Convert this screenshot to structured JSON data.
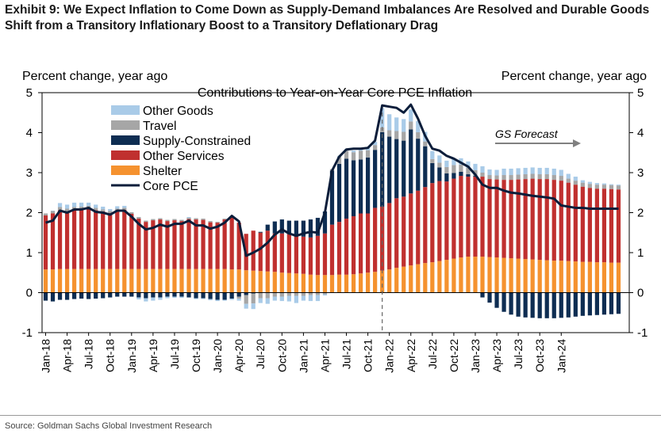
{
  "exhibit": {
    "title": "Exhibit 9: We Expect Inflation to Come Down as Supply-Demand Imbalances Are Resolved and Durable Goods Shift from a Transitory Inflationary Boost to a Transitory Deflationary Drag",
    "source": "Source: Goldman Sachs Global Investment Research"
  },
  "chart_data": {
    "type": "bar",
    "title": "Contributions to Year-on-Year Core PCE Inflation",
    "ylabel_left": "Percent change, year ago",
    "ylabel_right": "Percent change, year ago",
    "ylim": [
      -1,
      5
    ],
    "yticks": [
      -1,
      0,
      1,
      2,
      3,
      4,
      5
    ],
    "x_tick_labels": [
      "Jan-18",
      "Apr-18",
      "Jul-18",
      "Oct-18",
      "Jan-19",
      "Apr-19",
      "Jul-19",
      "Oct-19",
      "Jan-20",
      "Apr-20",
      "Jul-20",
      "Oct-20",
      "Jan-21",
      "Apr-21",
      "Jul-21",
      "Oct-21",
      "Jan-22",
      "Apr-22",
      "Jul-22",
      "Oct-22",
      "Jan-23",
      "Apr-23",
      "Jul-23",
      "Oct-23",
      "Jan-24"
    ],
    "annotation": "GS Forecast",
    "legend_position": "top-left",
    "colors": {
      "other_goods": "#a9cbe8",
      "travel": "#a6a6a6",
      "supply_constrained": "#0e2d52",
      "other_services": "#c0302f",
      "shelter": "#f5922f",
      "core_pce": "#0b1d3a"
    },
    "series": [
      {
        "name": "Other Goods",
        "key": "other_goods"
      },
      {
        "name": "Travel",
        "key": "travel"
      },
      {
        "name": "Supply-Constrained",
        "key": "supply_constrained"
      },
      {
        "name": "Other Services",
        "key": "other_services"
      },
      {
        "name": "Shelter",
        "key": "shelter"
      },
      {
        "name": "Core PCE",
        "key": "core_pce"
      }
    ],
    "months": [
      {
        "x": "Jan-18",
        "shelter": 0.58,
        "other_services": 1.35,
        "supply_constrained": -0.2,
        "travel": 0.05,
        "other_goods": 0.0,
        "core_pce": 1.75
      },
      {
        "x": "Feb-18",
        "shelter": 0.58,
        "other_services": 1.4,
        "supply_constrained": -0.22,
        "travel": 0.06,
        "other_goods": 0.01,
        "core_pce": 1.8
      },
      {
        "x": "Mar-18",
        "shelter": 0.59,
        "other_services": 1.47,
        "supply_constrained": -0.18,
        "travel": 0.08,
        "other_goods": 0.1,
        "core_pce": 2.05
      },
      {
        "x": "Apr-18",
        "shelter": 0.59,
        "other_services": 1.44,
        "supply_constrained": -0.18,
        "travel": 0.07,
        "other_goods": 0.1,
        "core_pce": 2.0
      },
      {
        "x": "May-18",
        "shelter": 0.59,
        "other_services": 1.48,
        "supply_constrained": -0.16,
        "travel": 0.07,
        "other_goods": 0.11,
        "core_pce": 2.08
      },
      {
        "x": "Jun-18",
        "shelter": 0.59,
        "other_services": 1.5,
        "supply_constrained": -0.15,
        "travel": 0.06,
        "other_goods": 0.1,
        "core_pce": 2.08
      },
      {
        "x": "Jul-18",
        "shelter": 0.59,
        "other_services": 1.52,
        "supply_constrained": -0.16,
        "travel": 0.06,
        "other_goods": 0.08,
        "core_pce": 2.12
      },
      {
        "x": "Aug-18",
        "shelter": 0.59,
        "other_services": 1.47,
        "supply_constrained": -0.15,
        "travel": 0.06,
        "other_goods": 0.08,
        "core_pce": 2.02
      },
      {
        "x": "Sep-18",
        "shelter": 0.59,
        "other_services": 1.44,
        "supply_constrained": -0.14,
        "travel": 0.05,
        "other_goods": 0.07,
        "core_pce": 2.0
      },
      {
        "x": "Oct-18",
        "shelter": 0.59,
        "other_services": 1.4,
        "supply_constrained": -0.12,
        "travel": 0.05,
        "other_goods": 0.05,
        "core_pce": 1.95
      },
      {
        "x": "Nov-18",
        "shelter": 0.59,
        "other_services": 1.46,
        "supply_constrained": -0.1,
        "travel": 0.05,
        "other_goods": 0.06,
        "core_pce": 2.05
      },
      {
        "x": "Dec-18",
        "shelter": 0.59,
        "other_services": 1.48,
        "supply_constrained": -0.1,
        "travel": 0.05,
        "other_goods": 0.05,
        "core_pce": 2.05
      },
      {
        "x": "Jan-19",
        "shelter": 0.59,
        "other_services": 1.38,
        "supply_constrained": -0.1,
        "travel": 0.04,
        "other_goods": 0.0,
        "core_pce": 1.9
      },
      {
        "x": "Feb-19",
        "shelter": 0.59,
        "other_services": 1.26,
        "supply_constrained": -0.12,
        "travel": 0.04,
        "other_goods": -0.05,
        "core_pce": 1.72
      },
      {
        "x": "Mar-19",
        "shelter": 0.59,
        "other_services": 1.18,
        "supply_constrained": -0.14,
        "travel": 0.03,
        "other_goods": -0.08,
        "core_pce": 1.58
      },
      {
        "x": "Apr-19",
        "shelter": 0.59,
        "other_services": 1.22,
        "supply_constrained": -0.12,
        "travel": 0.03,
        "other_goods": -0.08,
        "core_pce": 1.62
      },
      {
        "x": "May-19",
        "shelter": 0.59,
        "other_services": 1.24,
        "supply_constrained": -0.12,
        "travel": 0.03,
        "other_goods": -0.06,
        "core_pce": 1.7
      },
      {
        "x": "Jun-19",
        "shelter": 0.59,
        "other_services": 1.2,
        "supply_constrained": -0.1,
        "travel": 0.03,
        "other_goods": -0.04,
        "core_pce": 1.65
      },
      {
        "x": "Jul-19",
        "shelter": 0.59,
        "other_services": 1.22,
        "supply_constrained": -0.1,
        "travel": 0.03,
        "other_goods": -0.03,
        "core_pce": 1.72
      },
      {
        "x": "Aug-19",
        "shelter": 0.59,
        "other_services": 1.2,
        "supply_constrained": -0.1,
        "travel": 0.03,
        "other_goods": -0.03,
        "core_pce": 1.72
      },
      {
        "x": "Sep-19",
        "shelter": 0.59,
        "other_services": 1.25,
        "supply_constrained": -0.12,
        "travel": 0.03,
        "other_goods": 0.02,
        "core_pce": 1.8
      },
      {
        "x": "Oct-19",
        "shelter": 0.59,
        "other_services": 1.24,
        "supply_constrained": -0.14,
        "travel": 0.03,
        "other_goods": -0.02,
        "core_pce": 1.68
      },
      {
        "x": "Nov-19",
        "shelter": 0.59,
        "other_services": 1.23,
        "supply_constrained": -0.14,
        "travel": 0.03,
        "other_goods": -0.02,
        "core_pce": 1.68
      },
      {
        "x": "Dec-19",
        "shelter": 0.59,
        "other_services": 1.17,
        "supply_constrained": -0.16,
        "travel": 0.03,
        "other_goods": -0.03,
        "core_pce": 1.6
      },
      {
        "x": "Jan-20",
        "shelter": 0.59,
        "other_services": 1.16,
        "supply_constrained": -0.18,
        "travel": 0.02,
        "other_goods": -0.03,
        "core_pce": 1.65
      },
      {
        "x": "Feb-20",
        "shelter": 0.59,
        "other_services": 1.24,
        "supply_constrained": -0.18,
        "travel": 0.02,
        "other_goods": -0.02,
        "core_pce": 1.75
      },
      {
        "x": "Mar-20",
        "shelter": 0.58,
        "other_services": 1.3,
        "supply_constrained": -0.15,
        "travel": 0.02,
        "other_goods": -0.03,
        "core_pce": 1.92
      },
      {
        "x": "Apr-20",
        "shelter": 0.58,
        "other_services": 1.17,
        "supply_constrained": -0.1,
        "travel": -0.05,
        "other_goods": -0.05,
        "core_pce": 1.78
      },
      {
        "x": "May-20",
        "shelter": 0.56,
        "other_services": 0.91,
        "supply_constrained": -0.06,
        "travel": -0.22,
        "other_goods": -0.12,
        "core_pce": 0.92
      },
      {
        "x": "Jun-20",
        "shelter": 0.55,
        "other_services": 1.0,
        "supply_constrained": -0.02,
        "travel": -0.25,
        "other_goods": -0.14,
        "core_pce": 1.0
      },
      {
        "x": "Jul-20",
        "shelter": 0.54,
        "other_services": 0.96,
        "supply_constrained": 0.02,
        "travel": -0.14,
        "other_goods": -0.12,
        "core_pce": 1.1
      },
      {
        "x": "Aug-20",
        "shelter": 0.53,
        "other_services": 1.02,
        "supply_constrained": 0.15,
        "travel": -0.14,
        "other_goods": -0.14,
        "core_pce": 1.25
      },
      {
        "x": "Sep-20",
        "shelter": 0.52,
        "other_services": 0.96,
        "supply_constrained": 0.3,
        "travel": -0.1,
        "other_goods": -0.1,
        "core_pce": 1.45
      },
      {
        "x": "Oct-20",
        "shelter": 0.5,
        "other_services": 0.98,
        "supply_constrained": 0.35,
        "travel": -0.1,
        "other_goods": -0.11,
        "core_pce": 1.58
      },
      {
        "x": "Nov-20",
        "shelter": 0.49,
        "other_services": 0.97,
        "supply_constrained": 0.34,
        "travel": -0.08,
        "other_goods": -0.14,
        "core_pce": 1.48
      },
      {
        "x": "Dec-20",
        "shelter": 0.48,
        "other_services": 0.95,
        "supply_constrained": 0.37,
        "travel": -0.08,
        "other_goods": -0.18,
        "core_pce": 1.42
      },
      {
        "x": "Jan-21",
        "shelter": 0.47,
        "other_services": 0.93,
        "supply_constrained": 0.4,
        "travel": -0.08,
        "other_goods": -0.12,
        "core_pce": 1.48
      },
      {
        "x": "Feb-21",
        "shelter": 0.45,
        "other_services": 0.93,
        "supply_constrained": 0.45,
        "travel": -0.06,
        "other_goods": -0.15,
        "core_pce": 1.52
      },
      {
        "x": "Mar-21",
        "shelter": 0.44,
        "other_services": 0.98,
        "supply_constrained": 0.45,
        "travel": -0.06,
        "other_goods": -0.15,
        "core_pce": 1.5
      },
      {
        "x": "Apr-21",
        "shelter": 0.44,
        "other_services": 1.04,
        "supply_constrained": 0.55,
        "travel": -0.04,
        "other_goods": -0.03,
        "core_pce": 2.0
      },
      {
        "x": "May-21",
        "shelter": 0.44,
        "other_services": 1.26,
        "supply_constrained": 1.35,
        "travel": 0.04,
        "other_goods": 0.0,
        "core_pce": 3.05
      },
      {
        "x": "Jun-21",
        "shelter": 0.45,
        "other_services": 1.32,
        "supply_constrained": 1.45,
        "travel": 0.18,
        "other_goods": 0.02,
        "core_pce": 3.4
      },
      {
        "x": "Jul-21",
        "shelter": 0.45,
        "other_services": 1.4,
        "supply_constrained": 1.5,
        "travel": 0.2,
        "other_goods": 0.04,
        "core_pce": 3.58
      },
      {
        "x": "Aug-21",
        "shelter": 0.46,
        "other_services": 1.45,
        "supply_constrained": 1.4,
        "travel": 0.2,
        "other_goods": 0.04,
        "core_pce": 3.6
      },
      {
        "x": "Sep-21",
        "shelter": 0.48,
        "other_services": 1.5,
        "supply_constrained": 1.35,
        "travel": 0.22,
        "other_goods": 0.05,
        "core_pce": 3.6
      },
      {
        "x": "Oct-21",
        "shelter": 0.5,
        "other_services": 1.48,
        "supply_constrained": 1.4,
        "travel": 0.18,
        "other_goods": 0.06,
        "core_pce": 3.62
      },
      {
        "x": "Nov-21",
        "shelter": 0.52,
        "other_services": 1.6,
        "supply_constrained": 1.45,
        "travel": 0.12,
        "other_goods": 0.08,
        "core_pce": 3.8
      },
      {
        "x": "Dec-21",
        "shelter": 0.55,
        "other_services": 1.6,
        "supply_constrained": 1.86,
        "travel": 0.12,
        "other_goods": 0.48,
        "core_pce": 4.68
      },
      {
        "x": "Jan-22",
        "shelter": 0.58,
        "other_services": 1.66,
        "supply_constrained": 1.66,
        "travel": 0.16,
        "other_goods": 0.4,
        "core_pce": 4.65
      },
      {
        "x": "Feb-22",
        "shelter": 0.62,
        "other_services": 1.74,
        "supply_constrained": 1.48,
        "travel": 0.2,
        "other_goods": 0.34,
        "core_pce": 4.62
      },
      {
        "x": "Mar-22",
        "shelter": 0.65,
        "other_services": 1.75,
        "supply_constrained": 1.4,
        "travel": 0.22,
        "other_goods": 0.32,
        "core_pce": 4.5
      },
      {
        "x": "Apr-22",
        "shelter": 0.68,
        "other_services": 1.8,
        "supply_constrained": 1.6,
        "travel": 0.2,
        "other_goods": 0.3,
        "core_pce": 4.7
      },
      {
        "x": "May-22",
        "shelter": 0.71,
        "other_services": 1.84,
        "supply_constrained": 1.3,
        "travel": 0.16,
        "other_goods": 0.28,
        "core_pce": 4.35
      },
      {
        "x": "Jun-22",
        "shelter": 0.74,
        "other_services": 1.9,
        "supply_constrained": 1.02,
        "travel": 0.12,
        "other_goods": 0.24,
        "core_pce": 3.92
      },
      {
        "x": "Jul-22",
        "shelter": 0.76,
        "other_services": 1.98,
        "supply_constrained": 0.5,
        "travel": 0.1,
        "other_goods": 0.2,
        "core_pce": 3.6
      },
      {
        "x": "Aug-22",
        "shelter": 0.79,
        "other_services": 2.0,
        "supply_constrained": 0.34,
        "travel": 0.12,
        "other_goods": 0.18,
        "core_pce": 3.55
      },
      {
        "x": "Sep-22",
        "shelter": 0.82,
        "other_services": 1.96,
        "supply_constrained": 0.2,
        "travel": 0.16,
        "other_goods": 0.16,
        "core_pce": 3.42
      },
      {
        "x": "Oct-22",
        "shelter": 0.85,
        "other_services": 2.0,
        "supply_constrained": 0.14,
        "travel": 0.2,
        "other_goods": 0.16,
        "core_pce": 3.35
      },
      {
        "x": "Nov-22",
        "shelter": 0.88,
        "other_services": 2.04,
        "supply_constrained": 0.1,
        "travel": 0.18,
        "other_goods": 0.16,
        "core_pce": 3.25
      },
      {
        "x": "Dec-22",
        "shelter": 0.9,
        "other_services": 2.0,
        "supply_constrained": 0.06,
        "travel": 0.16,
        "other_goods": 0.16,
        "core_pce": 3.15
      },
      {
        "x": "Jan-23",
        "shelter": 0.9,
        "other_services": 2.0,
        "supply_constrained": 0.02,
        "travel": 0.14,
        "other_goods": 0.16,
        "core_pce": 2.95
      },
      {
        "x": "Feb-23",
        "shelter": 0.9,
        "other_services": 2.0,
        "supply_constrained": -0.12,
        "travel": 0.1,
        "other_goods": 0.16,
        "core_pce": 2.7
      },
      {
        "x": "Mar-23",
        "shelter": 0.89,
        "other_services": 1.95,
        "supply_constrained": -0.25,
        "travel": 0.1,
        "other_goods": 0.14,
        "core_pce": 2.62
      },
      {
        "x": "Apr-23",
        "shelter": 0.88,
        "other_services": 1.95,
        "supply_constrained": -0.38,
        "travel": 0.1,
        "other_goods": 0.14,
        "core_pce": 2.62
      },
      {
        "x": "May-23",
        "shelter": 0.87,
        "other_services": 1.95,
        "supply_constrained": -0.48,
        "travel": 0.12,
        "other_goods": 0.16,
        "core_pce": 2.55
      },
      {
        "x": "Jun-23",
        "shelter": 0.86,
        "other_services": 1.96,
        "supply_constrained": -0.55,
        "travel": 0.12,
        "other_goods": 0.16,
        "core_pce": 2.5
      },
      {
        "x": "Jul-23",
        "shelter": 0.85,
        "other_services": 1.98,
        "supply_constrained": -0.6,
        "travel": 0.12,
        "other_goods": 0.16,
        "core_pce": 2.48
      },
      {
        "x": "Aug-23",
        "shelter": 0.84,
        "other_services": 2.0,
        "supply_constrained": -0.62,
        "travel": 0.12,
        "other_goods": 0.16,
        "core_pce": 2.45
      },
      {
        "x": "Sep-23",
        "shelter": 0.83,
        "other_services": 2.02,
        "supply_constrained": -0.63,
        "travel": 0.12,
        "other_goods": 0.16,
        "core_pce": 2.42
      },
      {
        "x": "Oct-23",
        "shelter": 0.82,
        "other_services": 2.02,
        "supply_constrained": -0.64,
        "travel": 0.12,
        "other_goods": 0.16,
        "core_pce": 2.4
      },
      {
        "x": "Nov-23",
        "shelter": 0.81,
        "other_services": 2.03,
        "supply_constrained": -0.64,
        "travel": 0.12,
        "other_goods": 0.16,
        "core_pce": 2.38
      },
      {
        "x": "Dec-23",
        "shelter": 0.8,
        "other_services": 2.02,
        "supply_constrained": -0.64,
        "travel": 0.12,
        "other_goods": 0.16,
        "core_pce": 2.35
      },
      {
        "x": "Jan-24",
        "shelter": 0.8,
        "other_services": 2.0,
        "supply_constrained": -0.63,
        "travel": 0.12,
        "other_goods": 0.15,
        "core_pce": 2.18
      },
      {
        "x": "Feb-24",
        "shelter": 0.79,
        "other_services": 1.96,
        "supply_constrained": -0.62,
        "travel": 0.1,
        "other_goods": 0.12,
        "core_pce": 2.15
      },
      {
        "x": "Mar-24",
        "shelter": 0.78,
        "other_services": 1.92,
        "supply_constrained": -0.6,
        "travel": 0.1,
        "other_goods": 0.1,
        "core_pce": 2.12
      },
      {
        "x": "Apr-24",
        "shelter": 0.77,
        "other_services": 1.88,
        "supply_constrained": -0.58,
        "travel": 0.1,
        "other_goods": 0.06,
        "core_pce": 2.12
      },
      {
        "x": "May-24",
        "shelter": 0.77,
        "other_services": 1.85,
        "supply_constrained": -0.57,
        "travel": 0.1,
        "other_goods": 0.05,
        "core_pce": 2.1
      },
      {
        "x": "Jun-24",
        "shelter": 0.76,
        "other_services": 1.84,
        "supply_constrained": -0.56,
        "travel": 0.1,
        "other_goods": 0.04,
        "core_pce": 2.1
      },
      {
        "x": "Jul-24",
        "shelter": 0.76,
        "other_services": 1.84,
        "supply_constrained": -0.55,
        "travel": 0.1,
        "other_goods": 0.03,
        "core_pce": 2.1
      },
      {
        "x": "Aug-24",
        "shelter": 0.75,
        "other_services": 1.84,
        "supply_constrained": -0.54,
        "travel": 0.1,
        "other_goods": 0.02,
        "core_pce": 2.1
      },
      {
        "x": "Sep-24",
        "shelter": 0.75,
        "other_services": 1.83,
        "supply_constrained": -0.53,
        "travel": 0.1,
        "other_goods": 0.02,
        "core_pce": 2.1
      }
    ]
  }
}
